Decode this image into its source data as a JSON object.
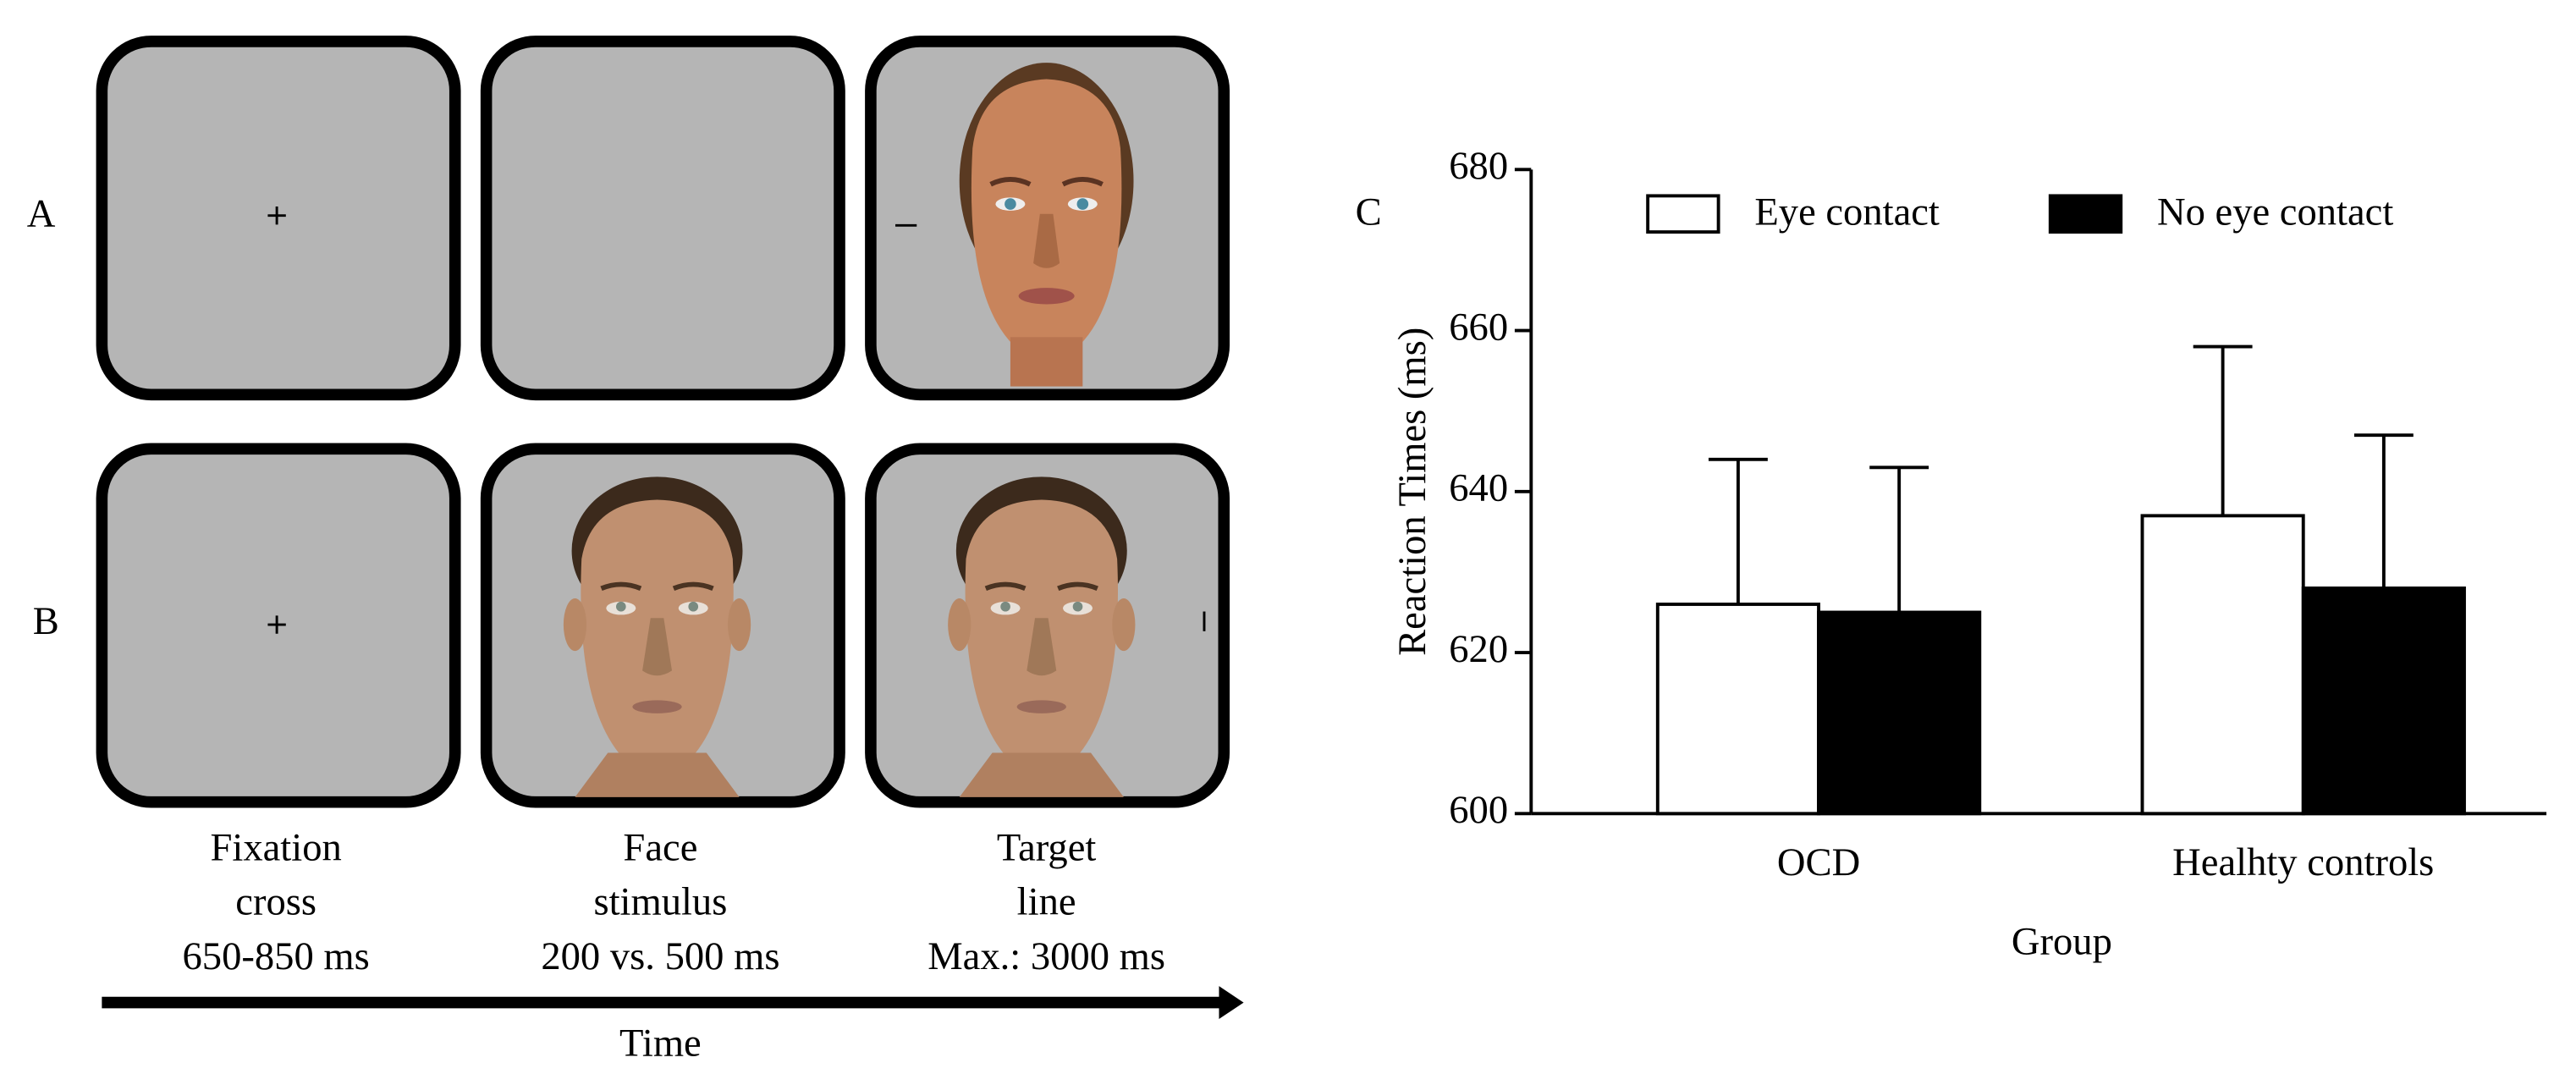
{
  "panel_labels": [
    "A",
    "B"
  ],
  "timeline": {
    "stages": [
      [
        "Fixation",
        "cross",
        "650-850 ms"
      ],
      [
        "Face",
        "stimulus",
        "200 vs. 500 ms"
      ],
      [
        "Target",
        "line",
        "Max.: 3000 ms"
      ]
    ],
    "axis_label": "Time"
  },
  "chart_data": {
    "type": "bar",
    "panel_label": "C",
    "categories": [
      "OCD",
      "Healhty controls"
    ],
    "series": [
      {
        "name": "Eye contact",
        "color": "#ffffff",
        "values": [
          626,
          637
        ],
        "errors": [
          18,
          21
        ]
      },
      {
        "name": "No eye contact",
        "color": "#000000",
        "values": [
          625,
          628
        ],
        "errors": [
          18,
          19
        ]
      }
    ],
    "xlabel": "Group",
    "ylabel": "Reaction Times (ms)",
    "ylim": [
      600,
      680
    ],
    "yticks": [
      600,
      620,
      640,
      660,
      680
    ],
    "grid": false
  }
}
